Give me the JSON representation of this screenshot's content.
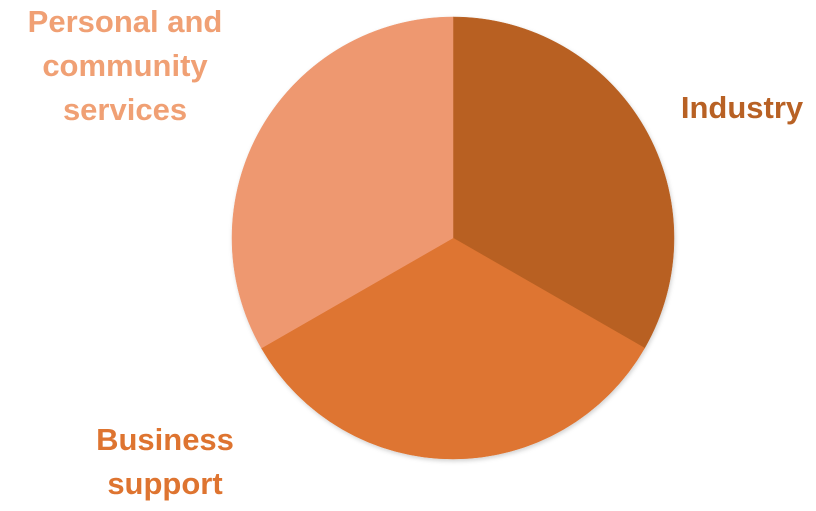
{
  "chart_data": {
    "type": "pie",
    "title": "",
    "slices": [
      {
        "label": "Industry",
        "value": 33.3,
        "color": "#B86124",
        "label_color": "#B86124"
      },
      {
        "label": "Business\nsupport",
        "value": 33.4,
        "color": "#DE7430",
        "label_color": "#DE7430"
      },
      {
        "label": "Personal and\ncommunity\nservices",
        "value": 33.3,
        "color": "#EE9870",
        "label_color": "#F0A074"
      }
    ],
    "start_angle_deg": 0,
    "direction": "clockwise",
    "legend": "none"
  }
}
